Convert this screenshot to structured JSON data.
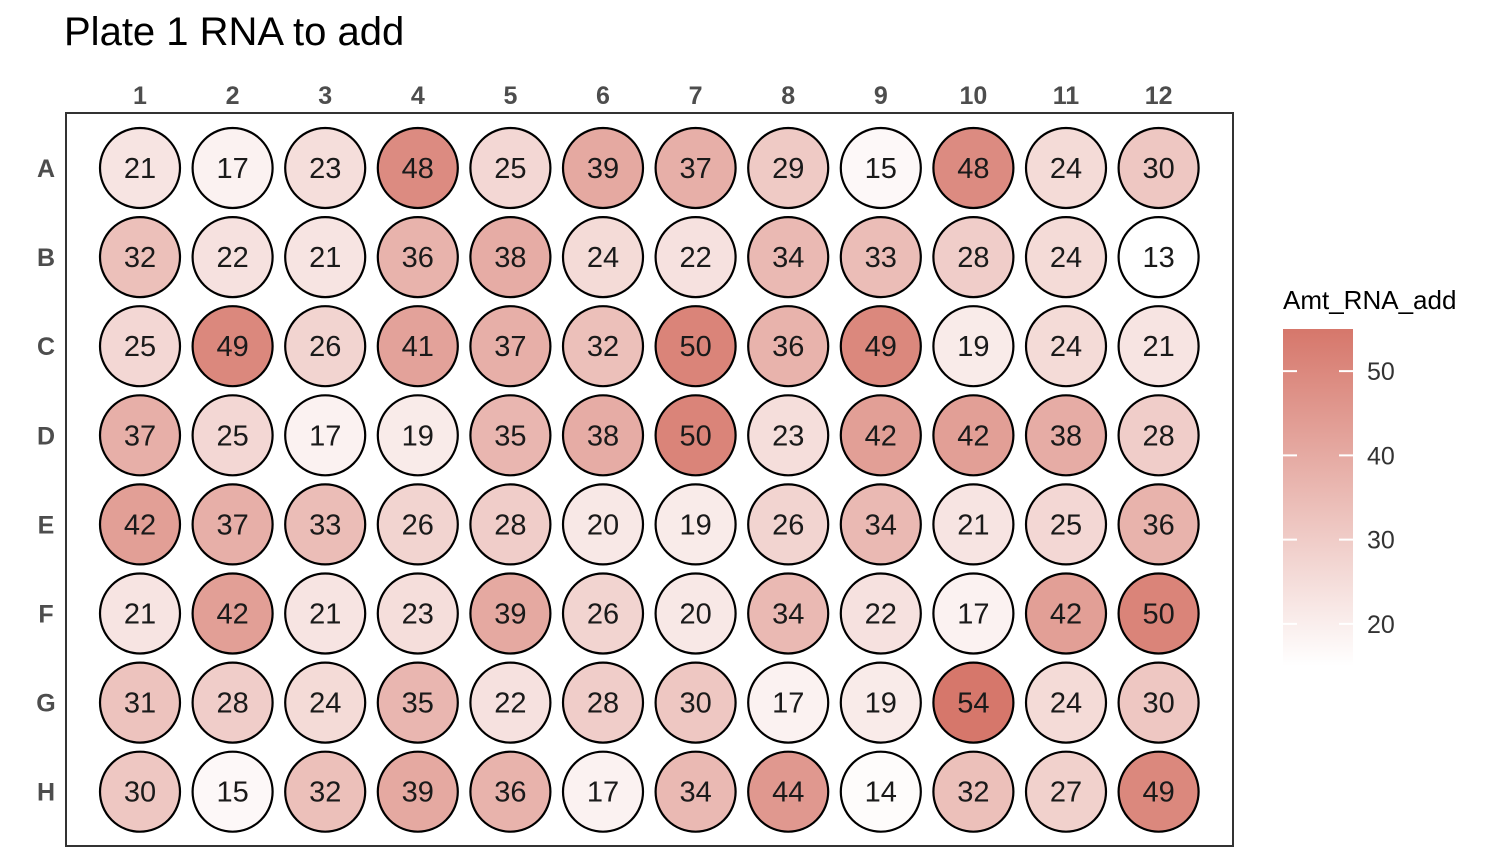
{
  "chart_data": {
    "type": "heatmap",
    "title": "Plate 1 RNA to add",
    "columns": [
      "1",
      "2",
      "3",
      "4",
      "5",
      "6",
      "7",
      "8",
      "9",
      "10",
      "11",
      "12"
    ],
    "rows": [
      "A",
      "B",
      "C",
      "D",
      "E",
      "F",
      "G",
      "H"
    ],
    "values": [
      [
        21,
        17,
        23,
        48,
        25,
        39,
        37,
        29,
        15,
        48,
        24,
        30
      ],
      [
        32,
        22,
        21,
        36,
        38,
        24,
        22,
        34,
        33,
        28,
        24,
        13
      ],
      [
        25,
        49,
        26,
        41,
        37,
        32,
        50,
        36,
        49,
        19,
        24,
        21
      ],
      [
        37,
        25,
        17,
        19,
        35,
        38,
        50,
        23,
        42,
        42,
        38,
        28
      ],
      [
        42,
        37,
        33,
        26,
        28,
        20,
        19,
        26,
        34,
        21,
        25,
        36
      ],
      [
        21,
        42,
        21,
        23,
        39,
        26,
        20,
        34,
        22,
        17,
        42,
        50
      ],
      [
        31,
        28,
        24,
        35,
        22,
        28,
        30,
        17,
        19,
        54,
        24,
        30
      ],
      [
        30,
        15,
        32,
        39,
        36,
        17,
        34,
        44,
        14,
        32,
        27,
        49
      ]
    ],
    "legend": {
      "title": "Amt_RNA_add",
      "ticks": [
        20,
        30,
        40,
        50
      ],
      "range": [
        13,
        54
      ],
      "placement": "right"
    },
    "colors": {
      "low": "#ffffff",
      "high": "#d6776b",
      "well_stroke": "#000000",
      "panel_border": "#333333"
    }
  }
}
